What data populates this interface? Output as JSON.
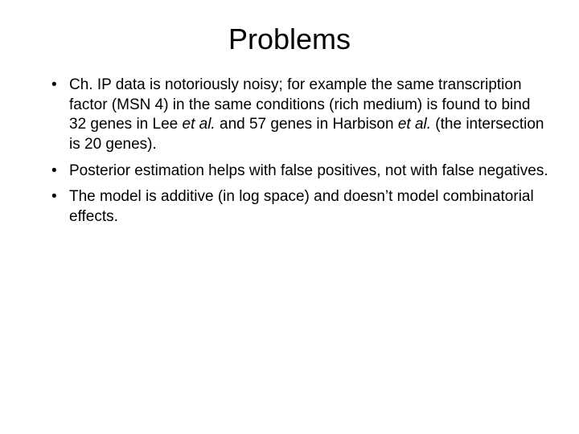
{
  "title": "Problems",
  "bullets": [
    {
      "pre": "Ch. IP data is notoriously noisy; for example the same transcription factor (MSN 4) in the same conditions (rich medium) is found to bind 32 genes in Lee ",
      "it1": "et al.",
      "mid": " and 57 genes in Harbison ",
      "it2": "et al.",
      "post": " (the intersection is 20 genes)."
    },
    {
      "pre": "Posterior estimation helps with false positives, not with false negatives.",
      "it1": "",
      "mid": "",
      "it2": "",
      "post": ""
    },
    {
      "pre": "The model is additive (in log space) and doesn’t model combinatorial effects.",
      "it1": "",
      "mid": "",
      "it2": "",
      "post": ""
    }
  ],
  "colors": {
    "background": "#ffffff",
    "text": "#000000"
  },
  "fontsize": {
    "title": 36,
    "body": 19
  }
}
